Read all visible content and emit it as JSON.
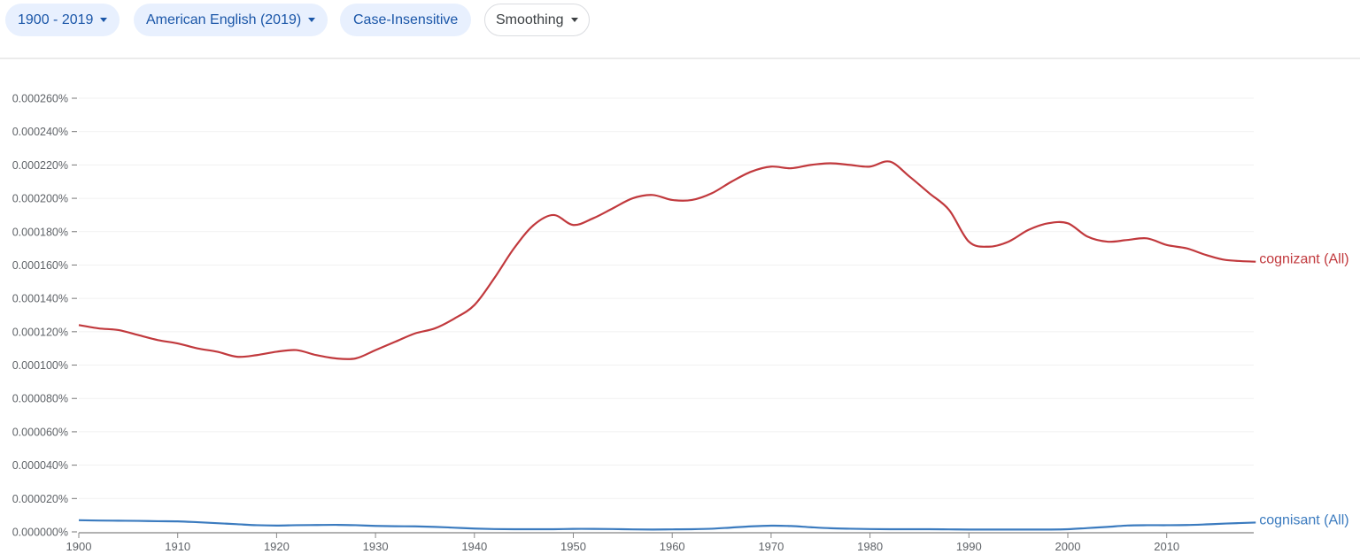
{
  "toolbar": {
    "chips": [
      {
        "label": "1900 - 2019",
        "has_dropdown": true,
        "style": "filled"
      },
      {
        "label": "American English (2019)",
        "has_dropdown": true,
        "style": "filled"
      },
      {
        "label": "Case-Insensitive",
        "has_dropdown": false,
        "style": "filled"
      },
      {
        "label": "Smoothing",
        "has_dropdown": true,
        "style": "outline"
      }
    ]
  },
  "chart_data": {
    "type": "line",
    "title": "",
    "xlabel": "",
    "ylabel": "",
    "xlim": [
      1900,
      2019
    ],
    "ylim": [
      0,
      0.00026
    ],
    "grid": true,
    "legend_position": "inline-right",
    "x_ticks": [
      "1900",
      "1910",
      "1920",
      "1930",
      "1940",
      "1950",
      "1960",
      "1970",
      "1980",
      "1990",
      "2000",
      "2010"
    ],
    "y_ticks": [
      "0.000000%",
      "0.000020%",
      "0.000040%",
      "0.000060%",
      "0.000080%",
      "0.000100%",
      "0.000120%",
      "0.000140%",
      "0.000160%",
      "0.000180%",
      "0.000200%",
      "0.000220%",
      "0.000240%",
      "0.000260%"
    ],
    "x": [
      1900,
      1902,
      1904,
      1906,
      1908,
      1910,
      1912,
      1914,
      1916,
      1918,
      1920,
      1922,
      1924,
      1926,
      1928,
      1930,
      1932,
      1934,
      1936,
      1938,
      1940,
      1942,
      1944,
      1946,
      1948,
      1950,
      1952,
      1954,
      1956,
      1958,
      1960,
      1962,
      1964,
      1966,
      1968,
      1970,
      1972,
      1974,
      1976,
      1978,
      1980,
      1982,
      1984,
      1986,
      1988,
      1990,
      1992,
      1994,
      1996,
      1998,
      2000,
      2002,
      2004,
      2006,
      2008,
      2010,
      2012,
      2014,
      2016,
      2019
    ],
    "series": [
      {
        "name": "cognizant (All)",
        "color": "#c1393d",
        "values": [
          0.000124,
          0.000122,
          0.000121,
          0.000118,
          0.000115,
          0.000113,
          0.00011,
          0.000108,
          0.000105,
          0.000106,
          0.000108,
          0.000109,
          0.000106,
          0.000104,
          0.000104,
          0.000109,
          0.000114,
          0.000119,
          0.000122,
          0.000128,
          0.000136,
          0.000152,
          0.00017,
          0.000184,
          0.00019,
          0.000184,
          0.000188,
          0.000194,
          0.0002,
          0.000202,
          0.000199,
          0.000199,
          0.000203,
          0.00021,
          0.000216,
          0.000219,
          0.000218,
          0.00022,
          0.000221,
          0.00022,
          0.000219,
          0.000222,
          0.000213,
          0.000203,
          0.000193,
          0.000174,
          0.000171,
          0.000174,
          0.000181,
          0.000185,
          0.000185,
          0.000177,
          0.000174,
          0.000175,
          0.000176,
          0.000172,
          0.00017,
          0.000166,
          0.000163,
          0.000162
        ]
      },
      {
        "name": "cognisant (All)",
        "color": "#3b7bbf",
        "values": [
          7e-06,
          6.8e-06,
          6.7e-06,
          6.6e-06,
          6.4e-06,
          6.3e-06,
          5.8e-06,
          5.2e-06,
          4.6e-06,
          4e-06,
          3.8e-06,
          4e-06,
          4.1e-06,
          4.2e-06,
          4e-06,
          3.6e-06,
          3.4e-06,
          3.3e-06,
          3e-06,
          2.5e-06,
          2e-06,
          1.7e-06,
          1.6e-06,
          1.6e-06,
          1.6e-06,
          1.8e-06,
          1.8e-06,
          1.7e-06,
          1.5e-06,
          1.4e-06,
          1.5e-06,
          1.6e-06,
          1.9e-06,
          2.6e-06,
          3.3e-06,
          3.7e-06,
          3.5e-06,
          2.8e-06,
          2.2e-06,
          1.9e-06,
          1.7e-06,
          1.6e-06,
          1.6e-06,
          1.6e-06,
          1.5e-06,
          1.4e-06,
          1.4e-06,
          1.4e-06,
          1.4e-06,
          1.4e-06,
          1.6e-06,
          2.3e-06,
          3e-06,
          3.8e-06,
          4e-06,
          4e-06,
          4.1e-06,
          4.5e-06,
          5e-06,
          5.6e-06
        ]
      }
    ]
  }
}
